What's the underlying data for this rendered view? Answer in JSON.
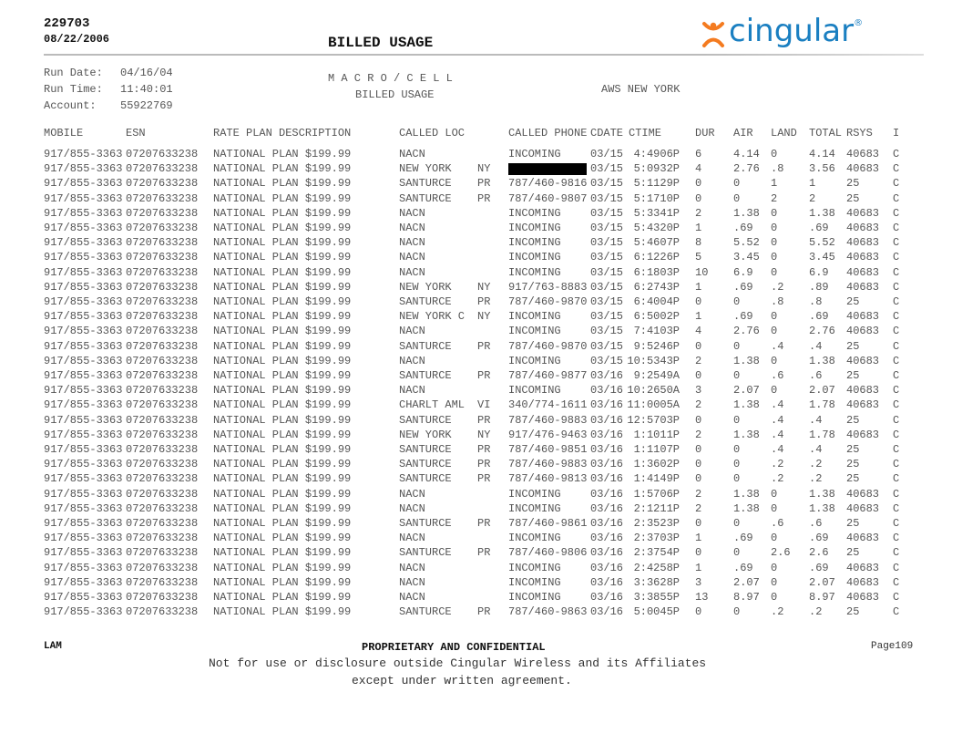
{
  "header": {
    "doc_id": "229703",
    "doc_date": "08/22/2006",
    "title": "BILLED USAGE",
    "logo_text": "cingular",
    "logo_mark": "®",
    "brand_orange": "#f47b20",
    "brand_blue": "#1a7fc1"
  },
  "meta": {
    "run_date_label": "Run Date:",
    "run_date": "04/16/04",
    "run_time_label": "Run Time:",
    "run_time": "11:40:01",
    "account_label": "Account:",
    "account": "55922769",
    "macro": "M A C R O / C E L L",
    "subtitle": "BILLED USAGE",
    "region": "AWS NEW YORK"
  },
  "columns": [
    "MOBILE",
    "ESN",
    "RATE PLAN DESCRIPTION",
    "CALLED LOC",
    "CALLED PHONE",
    "CDATE",
    "CTIME",
    "DUR",
    "AIR",
    "LAND",
    "TOTAL",
    "RSYS",
    "I"
  ],
  "rows": [
    [
      "917/855-3363",
      "07207633238",
      "NATIONAL PLAN $199.99",
      "NACN",
      "",
      "INCOMING",
      "03/15",
      "4:4906P",
      "6",
      "4.14",
      "0",
      "4.14",
      "40683",
      "C"
    ],
    [
      "917/855-3363",
      "07207633238",
      "NATIONAL PLAN $199.99",
      "NEW YORK",
      "NY",
      "[REDACTED]",
      "03/15",
      "5:0932P",
      "4",
      "2.76",
      ".8",
      "3.56",
      "40683",
      "C"
    ],
    [
      "917/855-3363",
      "07207633238",
      "NATIONAL PLAN $199.99",
      "SANTURCE",
      "PR",
      "787/460-9816",
      "03/15",
      "5:1129P",
      "0",
      "0",
      "1",
      "1",
      "25",
      "C"
    ],
    [
      "917/855-3363",
      "07207633238",
      "NATIONAL PLAN $199.99",
      "SANTURCE",
      "PR",
      "787/460-9807",
      "03/15",
      "5:1710P",
      "0",
      "0",
      "2",
      "2",
      "25",
      "C"
    ],
    [
      "917/855-3363",
      "07207633238",
      "NATIONAL PLAN $199.99",
      "NACN",
      "",
      "INCOMING",
      "03/15",
      "5:3341P",
      "2",
      "1.38",
      "0",
      "1.38",
      "40683",
      "C"
    ],
    [
      "917/855-3363",
      "07207633238",
      "NATIONAL PLAN $199.99",
      "NACN",
      "",
      "INCOMING",
      "03/15",
      "5:4320P",
      "1",
      ".69",
      "0",
      ".69",
      "40683",
      "C"
    ],
    [
      "917/855-3363",
      "07207633238",
      "NATIONAL PLAN $199.99",
      "NACN",
      "",
      "INCOMING",
      "03/15",
      "5:4607P",
      "8",
      "5.52",
      "0",
      "5.52",
      "40683",
      "C"
    ],
    [
      "917/855-3363",
      "07207633238",
      "NATIONAL PLAN $199.99",
      "NACN",
      "",
      "INCOMING",
      "03/15",
      "6:1226P",
      "5",
      "3.45",
      "0",
      "3.45",
      "40683",
      "C"
    ],
    [
      "917/855-3363",
      "07207633238",
      "NATIONAL PLAN $199.99",
      "NACN",
      "",
      "INCOMING",
      "03/15",
      "6:1803P",
      "10",
      "6.9",
      "0",
      "6.9",
      "40683",
      "C"
    ],
    [
      "917/855-3363",
      "07207633238",
      "NATIONAL PLAN $199.99",
      "NEW YORK",
      "NY",
      "917/763-8883",
      "03/15",
      "6:2743P",
      "1",
      ".69",
      ".2",
      ".89",
      "40683",
      "C"
    ],
    [
      "917/855-3363",
      "07207633238",
      "NATIONAL PLAN $199.99",
      "SANTURCE",
      "PR",
      "787/460-9870",
      "03/15",
      "6:4004P",
      "0",
      "0",
      ".8",
      ".8",
      "25",
      "C"
    ],
    [
      "917/855-3363",
      "07207633238",
      "NATIONAL PLAN $199.99",
      "NEW YORK C",
      "NY",
      "INCOMING",
      "03/15",
      "6:5002P",
      "1",
      ".69",
      "0",
      ".69",
      "40683",
      "C"
    ],
    [
      "917/855-3363",
      "07207633238",
      "NATIONAL PLAN $199.99",
      "NACN",
      "",
      "INCOMING",
      "03/15",
      "7:4103P",
      "4",
      "2.76",
      "0",
      "2.76",
      "40683",
      "C"
    ],
    [
      "917/855-3363",
      "07207633238",
      "NATIONAL PLAN $199.99",
      "SANTURCE",
      "PR",
      "787/460-9870",
      "03/15",
      "9:5246P",
      "0",
      "0",
      ".4",
      ".4",
      "25",
      "C"
    ],
    [
      "917/855-3363",
      "07207633238",
      "NATIONAL PLAN $199.99",
      "NACN",
      "",
      "INCOMING",
      "03/15",
      "10:5343P",
      "2",
      "1.38",
      "0",
      "1.38",
      "40683",
      "C"
    ],
    [
      "917/855-3363",
      "07207633238",
      "NATIONAL PLAN $199.99",
      "SANTURCE",
      "PR",
      "787/460-9877",
      "03/16",
      "9:2549A",
      "0",
      "0",
      ".6",
      ".6",
      "25",
      "C"
    ],
    [
      "917/855-3363",
      "07207633238",
      "NATIONAL PLAN $199.99",
      "NACN",
      "",
      "INCOMING",
      "03/16",
      "10:2650A",
      "3",
      "2.07",
      "0",
      "2.07",
      "40683",
      "C"
    ],
    [
      "917/855-3363",
      "07207633238",
      "NATIONAL PLAN $199.99",
      "CHARLT AML",
      "VI",
      "340/774-1611",
      "03/16",
      "11:0005A",
      "2",
      "1.38",
      ".4",
      "1.78",
      "40683",
      "C"
    ],
    [
      "917/855-3363",
      "07207633238",
      "NATIONAL PLAN $199.99",
      "SANTURCE",
      "PR",
      "787/460-9883",
      "03/16",
      "12:5703P",
      "0",
      "0",
      ".4",
      ".4",
      "25",
      "C"
    ],
    [
      "917/855-3363",
      "07207633238",
      "NATIONAL PLAN $199.99",
      "NEW YORK",
      "NY",
      "917/476-9463",
      "03/16",
      "1:1011P",
      "2",
      "1.38",
      ".4",
      "1.78",
      "40683",
      "C"
    ],
    [
      "917/855-3363",
      "07207633238",
      "NATIONAL PLAN $199.99",
      "SANTURCE",
      "PR",
      "787/460-9851",
      "03/16",
      "1:1107P",
      "0",
      "0",
      ".4",
      ".4",
      "25",
      "C"
    ],
    [
      "917/855-3363",
      "07207633238",
      "NATIONAL PLAN $199.99",
      "SANTURCE",
      "PR",
      "787/460-9883",
      "03/16",
      "1:3602P",
      "0",
      "0",
      ".2",
      ".2",
      "25",
      "C"
    ],
    [
      "917/855-3363",
      "07207633238",
      "NATIONAL PLAN $199.99",
      "SANTURCE",
      "PR",
      "787/460-9813",
      "03/16",
      "1:4149P",
      "0",
      "0",
      ".2",
      ".2",
      "25",
      "C"
    ],
    [
      "917/855-3363",
      "07207633238",
      "NATIONAL PLAN $199.99",
      "NACN",
      "",
      "INCOMING",
      "03/16",
      "1:5706P",
      "2",
      "1.38",
      "0",
      "1.38",
      "40683",
      "C"
    ],
    [
      "917/855-3363",
      "07207633238",
      "NATIONAL PLAN $199.99",
      "NACN",
      "",
      "INCOMING",
      "03/16",
      "2:1211P",
      "2",
      "1.38",
      "0",
      "1.38",
      "40683",
      "C"
    ],
    [
      "917/855-3363",
      "07207633238",
      "NATIONAL PLAN $199.99",
      "SANTURCE",
      "PR",
      "787/460-9861",
      "03/16",
      "2:3523P",
      "0",
      "0",
      ".6",
      ".6",
      "25",
      "C"
    ],
    [
      "917/855-3363",
      "07207633238",
      "NATIONAL PLAN $199.99",
      "NACN",
      "",
      "INCOMING",
      "03/16",
      "2:3703P",
      "1",
      ".69",
      "0",
      ".69",
      "40683",
      "C"
    ],
    [
      "917/855-3363",
      "07207633238",
      "NATIONAL PLAN $199.99",
      "SANTURCE",
      "PR",
      "787/460-9806",
      "03/16",
      "2:3754P",
      "0",
      "0",
      "2.6",
      "2.6",
      "25",
      "C"
    ],
    [
      "917/855-3363",
      "07207633238",
      "NATIONAL PLAN $199.99",
      "NACN",
      "",
      "INCOMING",
      "03/16",
      "2:4258P",
      "1",
      ".69",
      "0",
      ".69",
      "40683",
      "C"
    ],
    [
      "917/855-3363",
      "07207633238",
      "NATIONAL PLAN $199.99",
      "NACN",
      "",
      "INCOMING",
      "03/16",
      "3:3628P",
      "3",
      "2.07",
      "0",
      "2.07",
      "40683",
      "C"
    ],
    [
      "917/855-3363",
      "07207633238",
      "NATIONAL PLAN $199.99",
      "NACN",
      "",
      "INCOMING",
      "03/16",
      "3:3855P",
      "13",
      "8.97",
      "0",
      "8.97",
      "40683",
      "C"
    ],
    [
      "917/855-3363",
      "07207633238",
      "NATIONAL PLAN $199.99",
      "SANTURCE",
      "PR",
      "787/460-9863",
      "03/16",
      "5:0045P",
      "0",
      "0",
      ".2",
      ".2",
      "25",
      "C"
    ]
  ],
  "footer": {
    "left": "LAM",
    "center": "PROPRIETARY AND CONFIDENTIAL",
    "page": "Page109",
    "line1": "Not for use or disclosure outside Cingular Wireless and its Affiliates",
    "line2": "except under written agreement."
  }
}
